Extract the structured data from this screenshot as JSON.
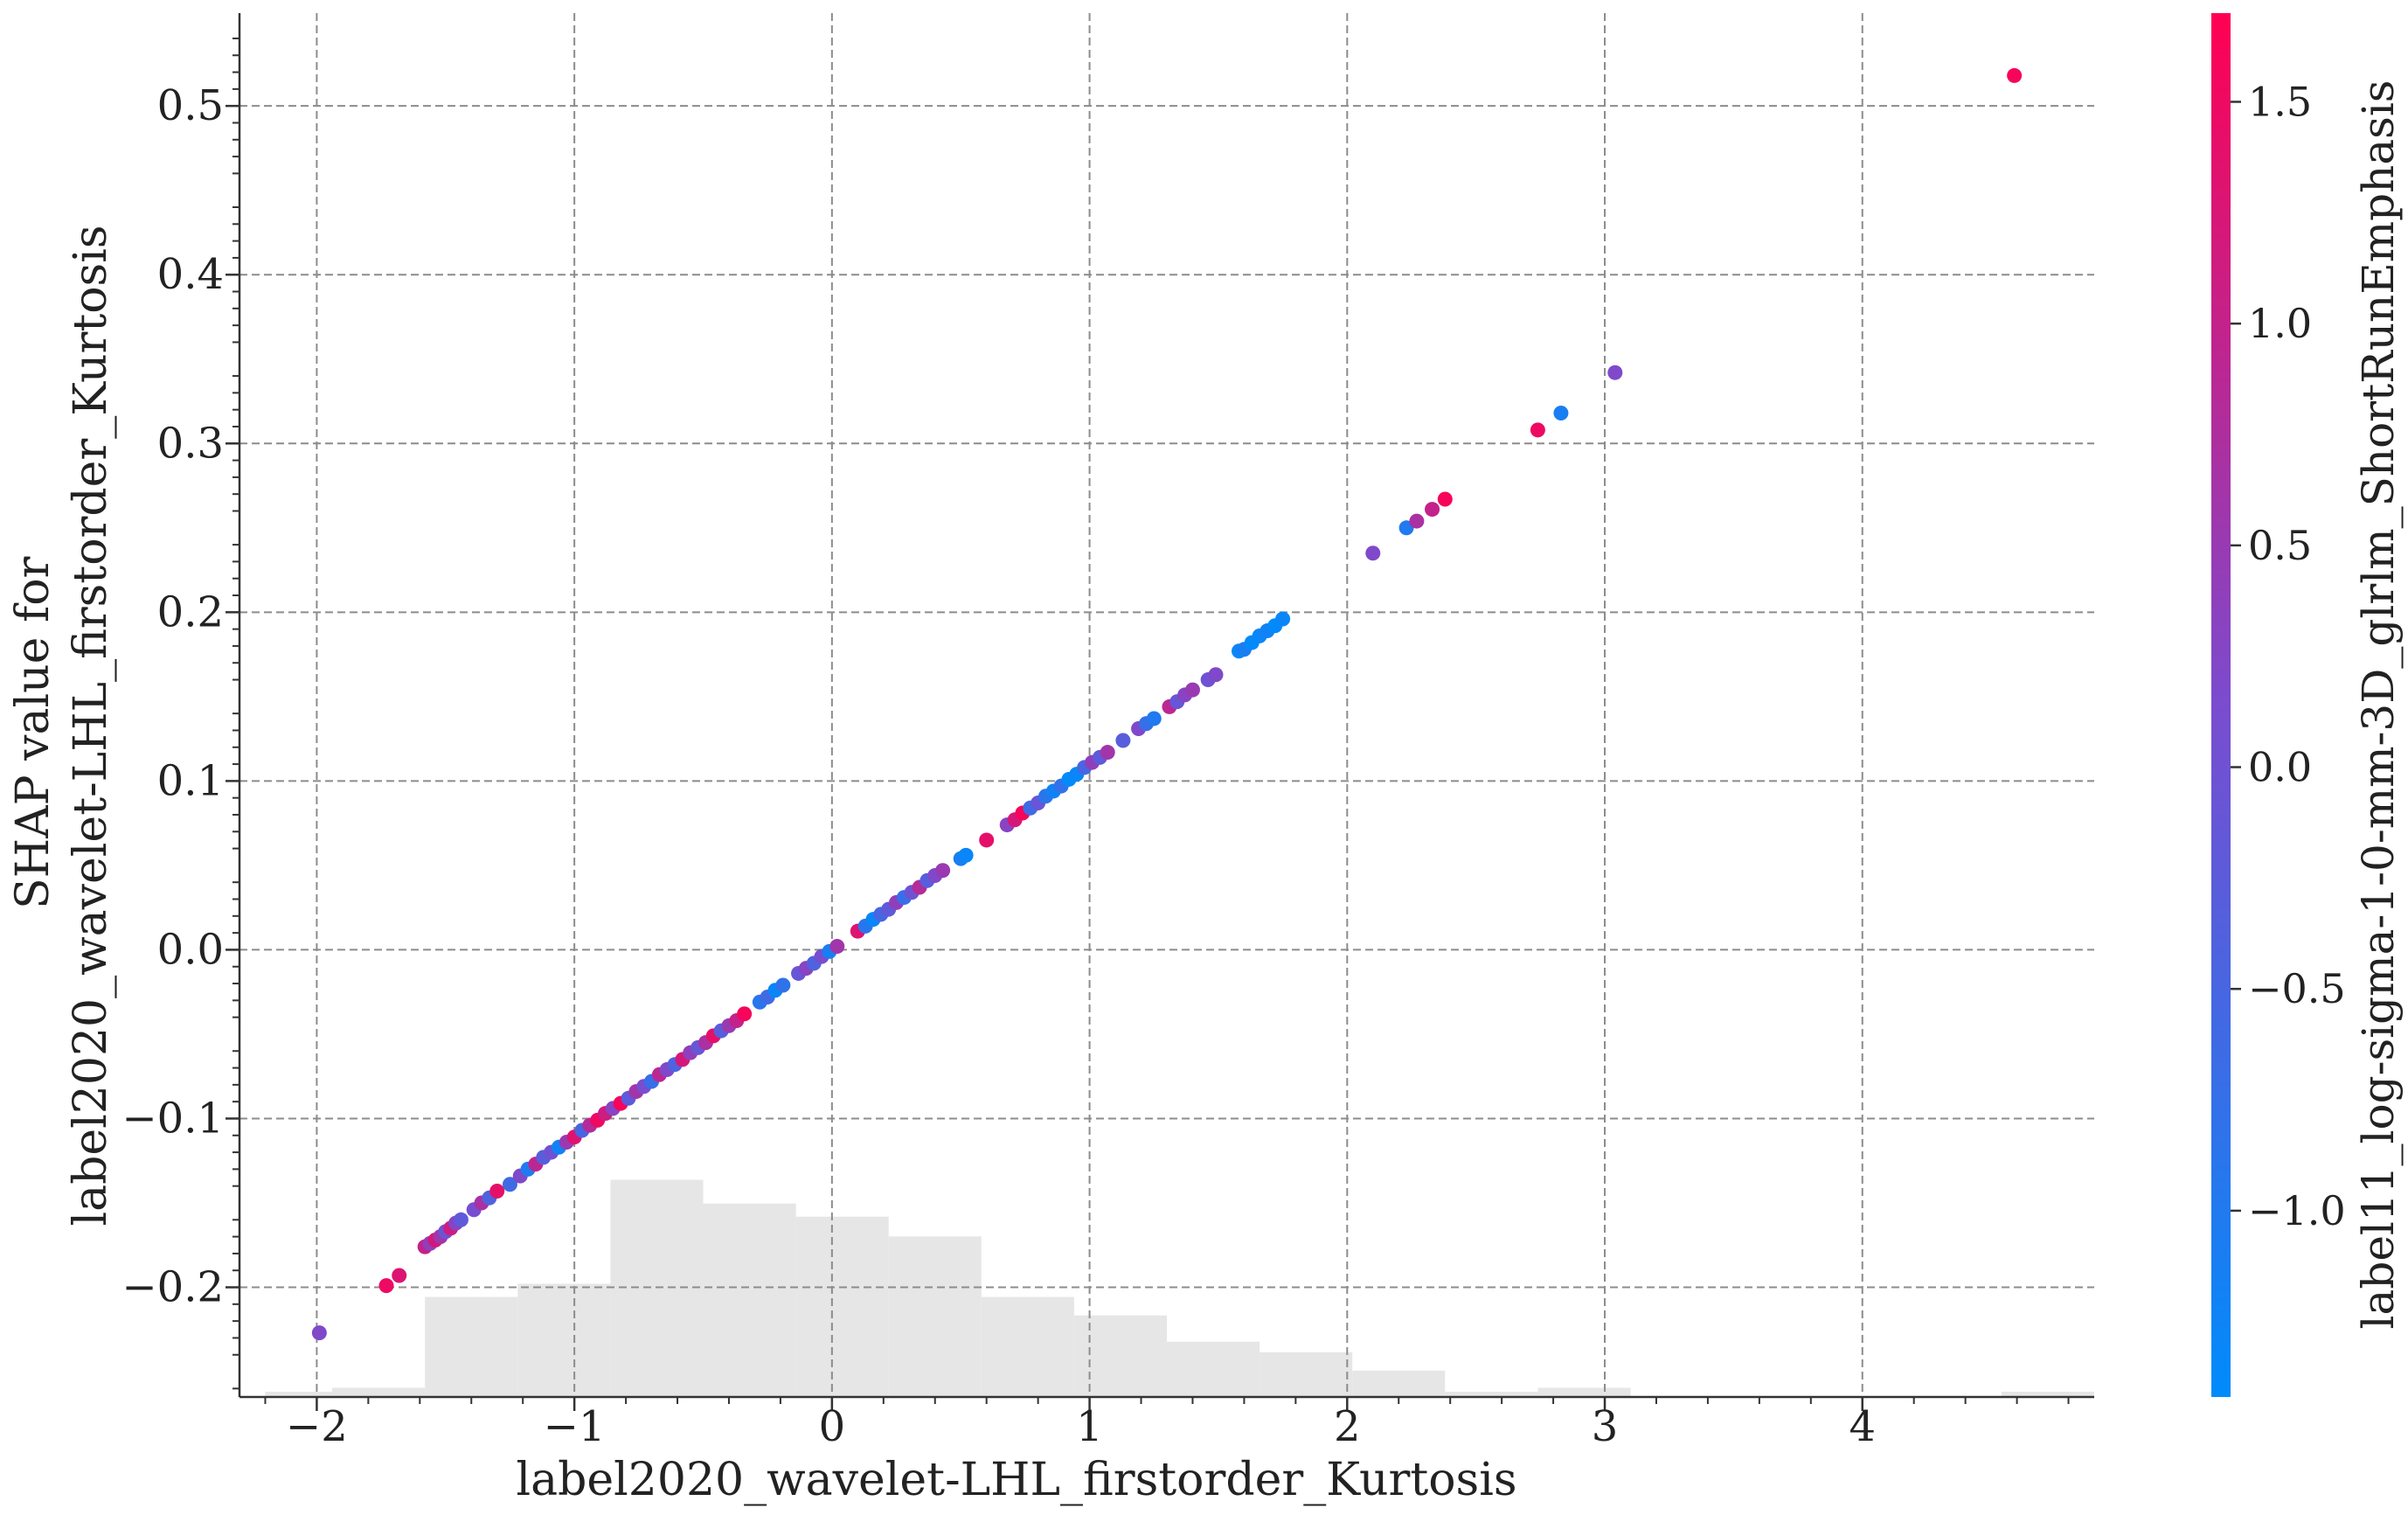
{
  "chart_data": {
    "type": "scatter",
    "xlabel": "label2020_wavelet-LHL_firstorder_Kurtosis",
    "ylabel_lines": [
      "SHAP value for",
      "label2020_wavelet-LHL_firstorder_Kurtosis"
    ],
    "xlim": [
      -2.3,
      4.9
    ],
    "ylim": [
      -0.265,
      0.555
    ],
    "xticks": [
      -2,
      -1,
      0,
      1,
      2,
      3,
      4
    ],
    "xtick_labels": [
      "−2",
      "−1",
      "0",
      "1",
      "2",
      "3",
      "4"
    ],
    "yticks": [
      -0.2,
      -0.1,
      0.0,
      0.1,
      0.2,
      0.3,
      0.4,
      0.5
    ],
    "ytick_labels": [
      "−0.2",
      "−0.1",
      "0.0",
      "0.1",
      "0.2",
      "0.3",
      "0.4",
      "0.5"
    ],
    "grid": true,
    "colorbar": {
      "label": "label11_log-sigma-1-0-mm-3D_glrlm_ShortRunEmphasis",
      "range": [
        -1.42,
        1.7
      ],
      "ticks": [
        -1.0,
        -0.5,
        0.0,
        0.5,
        1.0,
        1.5
      ],
      "tick_labels": [
        "−1.0",
        "−0.5",
        "0.0",
        "0.5",
        "1.0",
        "1.5"
      ],
      "low_color": "#008bfb",
      "mid_color": "#7a4ccf",
      "high_color": "#ff0052"
    },
    "histogram": {
      "color": "#e6e6e6",
      "bins": [
        {
          "x0": -2.2,
          "x1": -1.94,
          "density": 0.004
        },
        {
          "x0": -1.94,
          "x1": -1.58,
          "density": 0.007
        },
        {
          "x0": -1.58,
          "x1": -1.22,
          "density": 0.076
        },
        {
          "x0": -1.22,
          "x1": -0.86,
          "density": 0.086
        },
        {
          "x0": -0.86,
          "x1": -0.5,
          "density": 0.165
        },
        {
          "x0": -0.5,
          "x1": -0.14,
          "density": 0.147
        },
        {
          "x0": -0.14,
          "x1": 0.22,
          "density": 0.137
        },
        {
          "x0": 0.22,
          "x1": 0.58,
          "density": 0.122
        },
        {
          "x0": 0.58,
          "x1": 0.94,
          "density": 0.076
        },
        {
          "x0": 0.94,
          "x1": 1.3,
          "density": 0.062
        },
        {
          "x0": 1.3,
          "x1": 1.66,
          "density": 0.042
        },
        {
          "x0": 1.66,
          "x1": 2.02,
          "density": 0.034
        },
        {
          "x0": 2.02,
          "x1": 2.38,
          "density": 0.02
        },
        {
          "x0": 2.38,
          "x1": 2.74,
          "density": 0.004
        },
        {
          "x0": 2.74,
          "x1": 3.1,
          "density": 0.007
        },
        {
          "x0": 3.1,
          "x1": 4.54,
          "density": 0.0
        },
        {
          "x0": 4.54,
          "x1": 4.9,
          "density": 0.004
        }
      ]
    },
    "points": [
      {
        "x": -1.99,
        "y": -0.227,
        "c": 0.2
      },
      {
        "x": -1.73,
        "y": -0.199,
        "c": 1.5
      },
      {
        "x": -1.68,
        "y": -0.193,
        "c": 1.3
      },
      {
        "x": -1.58,
        "y": -0.176,
        "c": 1.0
      },
      {
        "x": -1.56,
        "y": -0.174,
        "c": 0.4
      },
      {
        "x": -1.54,
        "y": -0.172,
        "c": 1.2
      },
      {
        "x": -1.52,
        "y": -0.17,
        "c": 0.6
      },
      {
        "x": -1.5,
        "y": -0.167,
        "c": 0.0
      },
      {
        "x": -1.48,
        "y": -0.165,
        "c": 1.1
      },
      {
        "x": -1.46,
        "y": -0.162,
        "c": 0.3
      },
      {
        "x": -1.44,
        "y": -0.16,
        "c": -0.2
      },
      {
        "x": -1.39,
        "y": -0.154,
        "c": 0.1
      },
      {
        "x": -1.36,
        "y": -0.15,
        "c": 0.7
      },
      {
        "x": -1.33,
        "y": -0.147,
        "c": -0.4
      },
      {
        "x": -1.3,
        "y": -0.143,
        "c": 1.4
      },
      {
        "x": -1.25,
        "y": -0.139,
        "c": -0.6
      },
      {
        "x": -1.21,
        "y": -0.134,
        "c": 0.2
      },
      {
        "x": -1.18,
        "y": -0.13,
        "c": -1.0
      },
      {
        "x": -1.15,
        "y": -0.127,
        "c": 0.9
      },
      {
        "x": -1.12,
        "y": -0.123,
        "c": -0.3
      },
      {
        "x": -1.09,
        "y": -0.12,
        "c": 0.0
      },
      {
        "x": -1.06,
        "y": -0.117,
        "c": -1.2
      },
      {
        "x": -1.03,
        "y": -0.114,
        "c": 0.5
      },
      {
        "x": -1.0,
        "y": -0.111,
        "c": 1.3
      },
      {
        "x": -0.97,
        "y": -0.107,
        "c": -0.5
      },
      {
        "x": -0.94,
        "y": -0.104,
        "c": 0.8
      },
      {
        "x": -0.91,
        "y": -0.101,
        "c": 1.5
      },
      {
        "x": -0.88,
        "y": -0.097,
        "c": 1.1
      },
      {
        "x": -0.85,
        "y": -0.094,
        "c": 0.3
      },
      {
        "x": -0.82,
        "y": -0.091,
        "c": 1.6
      },
      {
        "x": -0.79,
        "y": -0.088,
        "c": -0.2
      },
      {
        "x": -0.76,
        "y": -0.084,
        "c": 0.6
      },
      {
        "x": -0.73,
        "y": -0.081,
        "c": 0.1
      },
      {
        "x": -0.7,
        "y": -0.078,
        "c": -0.7
      },
      {
        "x": -0.67,
        "y": -0.074,
        "c": 0.9
      },
      {
        "x": -0.64,
        "y": -0.071,
        "c": 0.2
      },
      {
        "x": -0.61,
        "y": -0.068,
        "c": -0.4
      },
      {
        "x": -0.58,
        "y": -0.065,
        "c": 1.2
      },
      {
        "x": -0.55,
        "y": -0.061,
        "c": 0.4
      },
      {
        "x": -0.52,
        "y": -0.058,
        "c": -0.1
      },
      {
        "x": -0.49,
        "y": -0.055,
        "c": 0.7
      },
      {
        "x": -0.46,
        "y": -0.051,
        "c": 1.4
      },
      {
        "x": -0.43,
        "y": -0.048,
        "c": -0.3
      },
      {
        "x": -0.4,
        "y": -0.045,
        "c": 0.5
      },
      {
        "x": -0.37,
        "y": -0.042,
        "c": 1.0
      },
      {
        "x": -0.34,
        "y": -0.038,
        "c": 1.6
      },
      {
        "x": -0.28,
        "y": -0.031,
        "c": -0.9
      },
      {
        "x": -0.25,
        "y": -0.028,
        "c": -0.6
      },
      {
        "x": -0.22,
        "y": -0.024,
        "c": -1.3
      },
      {
        "x": -0.19,
        "y": -0.021,
        "c": -0.8
      },
      {
        "x": -0.13,
        "y": -0.014,
        "c": -0.1
      },
      {
        "x": -0.1,
        "y": -0.011,
        "c": 0.3
      },
      {
        "x": -0.07,
        "y": -0.008,
        "c": -0.4
      },
      {
        "x": -0.04,
        "y": -0.004,
        "c": 0.1
      },
      {
        "x": -0.01,
        "y": -0.001,
        "c": -1.1
      },
      {
        "x": 0.02,
        "y": 0.002,
        "c": 0.6
      },
      {
        "x": 0.1,
        "y": 0.011,
        "c": 1.3
      },
      {
        "x": 0.13,
        "y": 0.014,
        "c": -0.9
      },
      {
        "x": 0.16,
        "y": 0.018,
        "c": -1.3
      },
      {
        "x": 0.19,
        "y": 0.021,
        "c": -0.5
      },
      {
        "x": 0.22,
        "y": 0.024,
        "c": -0.2
      },
      {
        "x": 0.25,
        "y": 0.028,
        "c": 0.4
      },
      {
        "x": 0.28,
        "y": 0.031,
        "c": -0.7
      },
      {
        "x": 0.31,
        "y": 0.034,
        "c": 0.0
      },
      {
        "x": 0.34,
        "y": 0.037,
        "c": 0.8
      },
      {
        "x": 0.37,
        "y": 0.041,
        "c": -0.3
      },
      {
        "x": 0.4,
        "y": 0.044,
        "c": 0.2
      },
      {
        "x": 0.43,
        "y": 0.047,
        "c": 0.5
      },
      {
        "x": 0.5,
        "y": 0.054,
        "c": -1.1
      },
      {
        "x": 0.52,
        "y": 0.056,
        "c": -1.3
      },
      {
        "x": 0.6,
        "y": 0.065,
        "c": 1.4
      },
      {
        "x": 0.68,
        "y": 0.074,
        "c": 0.3
      },
      {
        "x": 0.71,
        "y": 0.077,
        "c": 1.2
      },
      {
        "x": 0.74,
        "y": 0.081,
        "c": 1.6
      },
      {
        "x": 0.77,
        "y": 0.084,
        "c": -0.6
      },
      {
        "x": 0.8,
        "y": 0.087,
        "c": -0.1
      },
      {
        "x": 0.83,
        "y": 0.091,
        "c": -0.9
      },
      {
        "x": 0.86,
        "y": 0.094,
        "c": -1.2
      },
      {
        "x": 0.89,
        "y": 0.097,
        "c": -0.8
      },
      {
        "x": 0.92,
        "y": 0.101,
        "c": -1.4
      },
      {
        "x": 0.95,
        "y": 0.104,
        "c": -1.3
      },
      {
        "x": 0.98,
        "y": 0.108,
        "c": -0.5
      },
      {
        "x": 1.01,
        "y": 0.111,
        "c": 0.4
      },
      {
        "x": 1.04,
        "y": 0.114,
        "c": -0.2
      },
      {
        "x": 1.07,
        "y": 0.117,
        "c": 0.6
      },
      {
        "x": 1.13,
        "y": 0.124,
        "c": -0.3
      },
      {
        "x": 1.19,
        "y": 0.131,
        "c": 0.2
      },
      {
        "x": 1.22,
        "y": 0.134,
        "c": -0.7
      },
      {
        "x": 1.25,
        "y": 0.137,
        "c": -1.0
      },
      {
        "x": 1.31,
        "y": 0.144,
        "c": 0.9
      },
      {
        "x": 1.34,
        "y": 0.147,
        "c": -0.1
      },
      {
        "x": 1.37,
        "y": 0.151,
        "c": 0.3
      },
      {
        "x": 1.4,
        "y": 0.154,
        "c": 0.5
      },
      {
        "x": 1.46,
        "y": 0.16,
        "c": 0.0
      },
      {
        "x": 1.49,
        "y": 0.163,
        "c": 0.2
      },
      {
        "x": 1.58,
        "y": 0.177,
        "c": -1.3
      },
      {
        "x": 1.6,
        "y": 0.178,
        "c": -1.1
      },
      {
        "x": 1.63,
        "y": 0.182,
        "c": -1.4
      },
      {
        "x": 1.66,
        "y": 0.186,
        "c": -1.3
      },
      {
        "x": 1.69,
        "y": 0.189,
        "c": -1.2
      },
      {
        "x": 1.72,
        "y": 0.192,
        "c": -1.4
      },
      {
        "x": 1.75,
        "y": 0.196,
        "c": -1.3
      },
      {
        "x": 2.1,
        "y": 0.235,
        "c": 0.2
      },
      {
        "x": 2.23,
        "y": 0.25,
        "c": -1.0
      },
      {
        "x": 2.27,
        "y": 0.254,
        "c": 0.7
      },
      {
        "x": 2.33,
        "y": 0.261,
        "c": 1.0
      },
      {
        "x": 2.38,
        "y": 0.267,
        "c": 1.6
      },
      {
        "x": 2.74,
        "y": 0.308,
        "c": 1.5
      },
      {
        "x": 2.83,
        "y": 0.318,
        "c": -1.1
      },
      {
        "x": 3.04,
        "y": 0.342,
        "c": 0.2
      },
      {
        "x": 4.59,
        "y": 0.518,
        "c": 1.6
      }
    ]
  }
}
